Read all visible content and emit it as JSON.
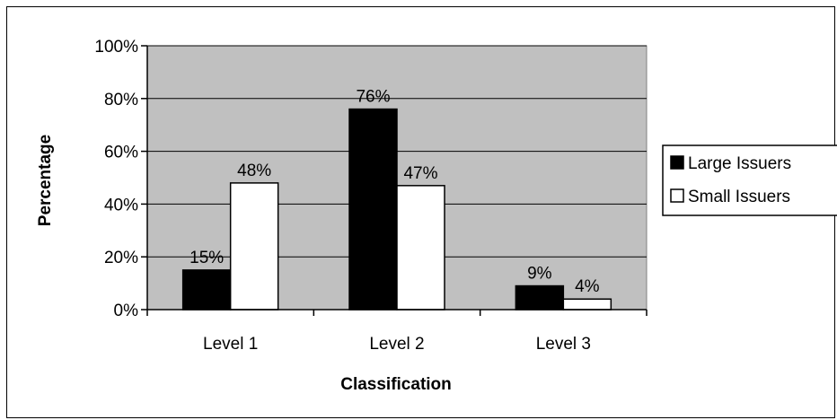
{
  "chart_data": {
    "type": "bar",
    "xlabel": "Classification",
    "ylabel": "Percentage",
    "categories": [
      "Level 1",
      "Level 2",
      "Level 3"
    ],
    "series": [
      {
        "name": "Large Issuers",
        "values": [
          15,
          76,
          9
        ],
        "labels": [
          "15%",
          "76%",
          "9%"
        ],
        "color": "#000000"
      },
      {
        "name": "Small Issuers",
        "values": [
          48,
          47,
          4
        ],
        "labels": [
          "48%",
          "47%",
          "4%"
        ],
        "color": "#ffffff"
      }
    ],
    "ylim": [
      0,
      100
    ],
    "yticks": [
      0,
      20,
      40,
      60,
      80,
      100
    ],
    "ytick_labels": [
      "0%",
      "20%",
      "40%",
      "60%",
      "80%",
      "100%"
    ],
    "grid": true,
    "plot_background": "#c0c0c0",
    "legend_position": "right"
  }
}
